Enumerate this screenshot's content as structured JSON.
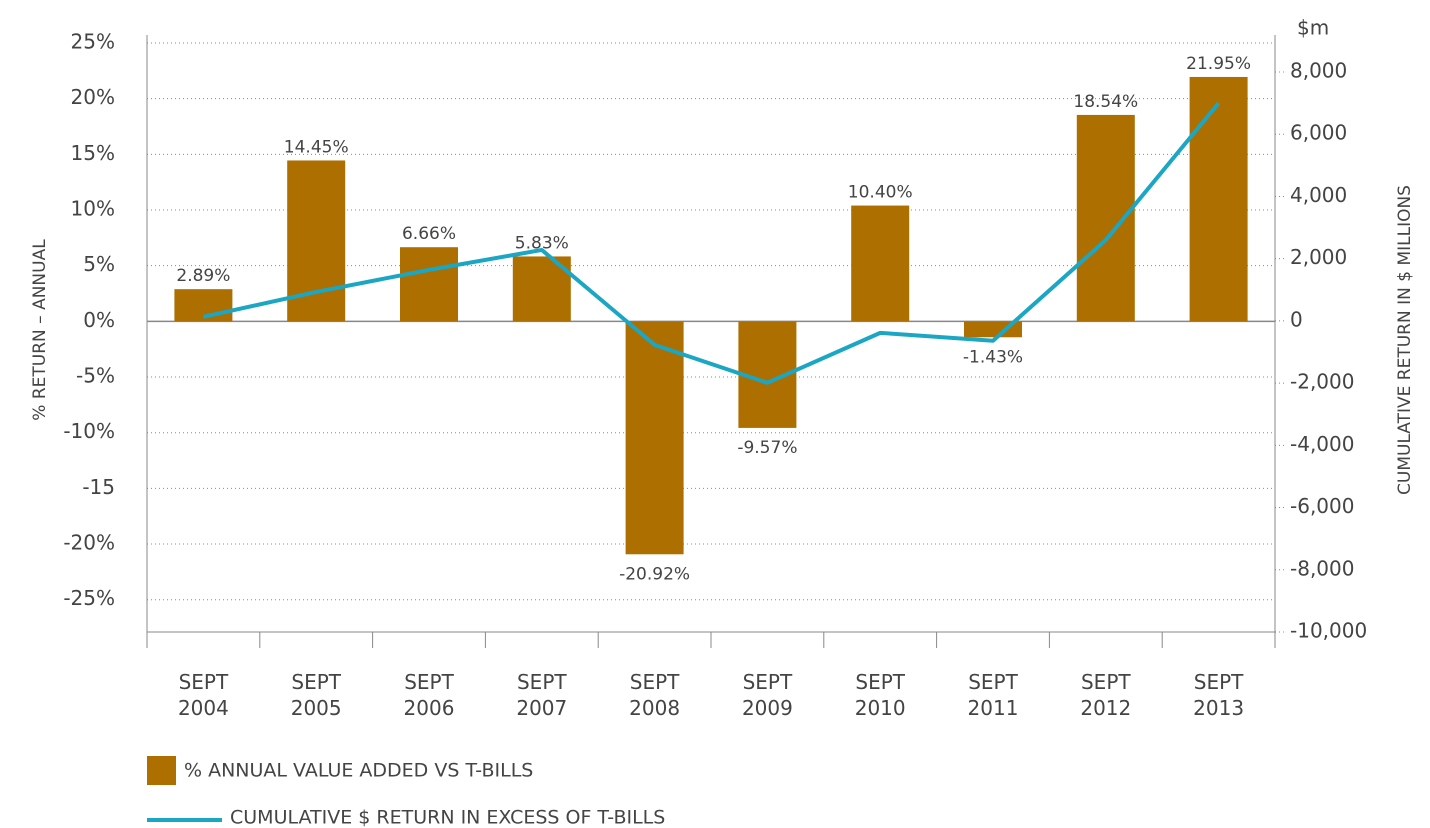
{
  "chart_data": {
    "type": "bar",
    "y_label": "% RETURN – ANNUAL",
    "y2_label": "CUMULATIVE RETURN IN $ MILLIONS",
    "y2_unit": "$m",
    "categories": [
      "SEPT 2004",
      "SEPT 2005",
      "SEPT 2006",
      "SEPT 2007",
      "SEPT 2008",
      "SEPT 2009",
      "SEPT 2010",
      "SEPT 2011",
      "SEPT 2012",
      "SEPT 2013"
    ],
    "series": [
      {
        "name": "% ANNUAL VALUE ADDED VS T-BILLS",
        "type": "bar",
        "color": "#ad6f00",
        "values": [
          2.89,
          14.45,
          6.66,
          5.83,
          -20.92,
          -9.57,
          10.4,
          -1.43,
          18.54,
          21.95
        ],
        "value_labels": [
          "2.89%",
          "14.45%",
          "6.66%",
          "5.83%",
          "-20.92%",
          "-9.57%",
          "10.40%",
          "-1.43%",
          "18.54%",
          "21.95%"
        ]
      },
      {
        "name": "CUMULATIVE $ RETURN IN EXCESS OF T-BILLS",
        "type": "line",
        "axis": "y2",
        "color": "#1ba6c4",
        "values": [
          130,
          930,
          1640,
          2280,
          -770,
          -1990,
          -385,
          -640,
          2600,
          7000
        ]
      }
    ],
    "ylim": [
      -27.9,
      25
    ],
    "yticks": [
      {
        "value": 25,
        "label": "25%"
      },
      {
        "value": 20,
        "label": "20%"
      },
      {
        "value": 15,
        "label": "15%"
      },
      {
        "value": 10,
        "label": "10%"
      },
      {
        "value": 5,
        "label": "5%"
      },
      {
        "value": 0,
        "label": "0%"
      },
      {
        "value": -5,
        "label": "-5%"
      },
      {
        "value": -10,
        "label": "-10%"
      },
      {
        "value": -15,
        "label": "-15"
      },
      {
        "value": -20,
        "label": "-20%"
      },
      {
        "value": -25,
        "label": "-25%"
      }
    ],
    "y2lim": [
      -10000,
      8932
    ],
    "y2ticks": [
      {
        "value": 8000,
        "label": "8,000"
      },
      {
        "value": 6000,
        "label": "6,000"
      },
      {
        "value": 4000,
        "label": "4,000"
      },
      {
        "value": 2000,
        "label": "2,000"
      },
      0,
      {
        "value": -2000,
        "label": "-2,000"
      },
      {
        "value": -4000,
        "label": "-4,000"
      },
      {
        "value": -6000,
        "label": "-6,000"
      },
      {
        "value": -8000,
        "label": "-8,000"
      },
      {
        "value": -10000,
        "label": "-10,000"
      }
    ],
    "grid": true
  }
}
